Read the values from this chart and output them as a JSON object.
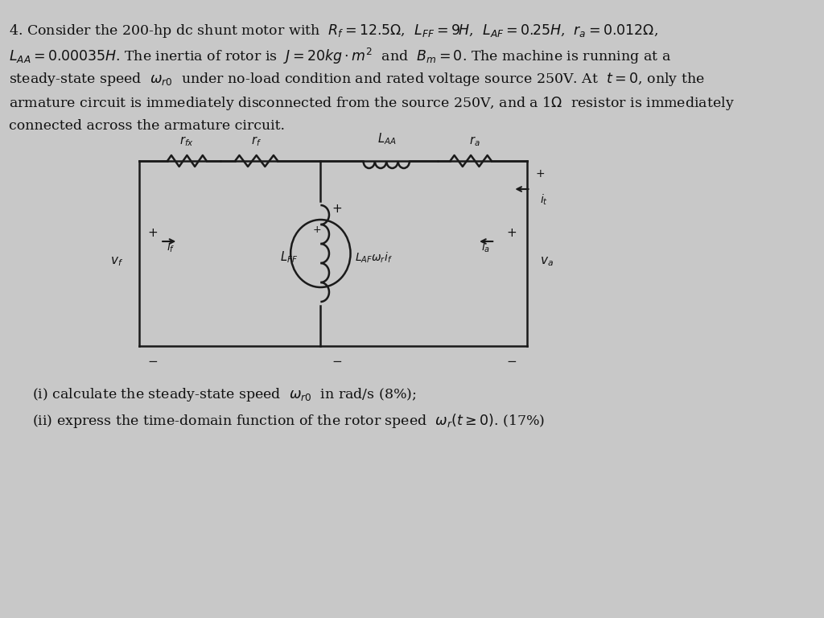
{
  "bg_color": "#c8c8c8",
  "text_color": "#111111",
  "fs_main": 12.5,
  "fs_circuit": 10.5,
  "fs_small": 10,
  "line1": "4. Consider the 200-hp dc shunt motor with  $R_f =12.5\\Omega$,  $L_{FF} =9H$,  $L_{AF} =0.25H$,  $r_a =0.012\\Omega$,",
  "line2": "$L_{AA} =0.00035H$. The inertia of rotor is  $J=20kg\\cdot m^2$  and  $B_m =0$. The machine is running at a",
  "line3": "steady-state speed  $\\omega_{r0}$  under no-load condition and rated voltage source 250V. At  $t=0$, only the",
  "line4": "armature circuit is immediately disconnected from the source 250V, and a 1$\\Omega$  resistor is immediately",
  "line5": "connected across the armature circuit.",
  "sub1": "(i) calculate the steady-state speed  $\\omega_{r0}$  in rad/s (8%);",
  "sub2": "(ii) express the time-domain function of the rotor speed  $\\omega_r(t\\geq 0)$. (17%)"
}
